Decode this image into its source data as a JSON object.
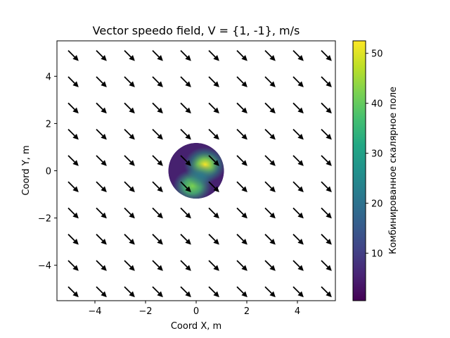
{
  "chart_data": {
    "type": "quiver",
    "title": "Vector speedo field, V = {1, -1}, m/s",
    "xlabel": "Coord X, m",
    "ylabel": "Coord Y, m",
    "xlim": [
      -5.5,
      5.5
    ],
    "ylim": [
      -5.5,
      5.5
    ],
    "xticks": [
      -4,
      -2,
      0,
      2,
      4
    ],
    "yticks": [
      -4,
      -2,
      0,
      2,
      4
    ],
    "tick_labels": {
      "x": [
        "−4",
        "−2",
        "0",
        "2",
        "4"
      ],
      "y": [
        "−4",
        "−2",
        "0",
        "2",
        "4"
      ]
    },
    "grid": false,
    "vector_field": {
      "vector": [
        1,
        -1
      ],
      "grid_x": [
        -5,
        -3.889,
        -2.778,
        -1.667,
        -0.556,
        0.556,
        1.667,
        2.778,
        3.889,
        5
      ],
      "grid_y": [
        -5,
        -3.889,
        -2.778,
        -1.667,
        -0.556,
        0.556,
        1.667,
        2.778,
        3.889,
        5
      ],
      "color": "#000000"
    },
    "scalar_disk": {
      "center": [
        0,
        0
      ],
      "radius": 1.1,
      "colormap": "viridis",
      "hotspots": [
        {
          "x": 0.35,
          "y": 0.25,
          "value": 52
        },
        {
          "x": -0.15,
          "y": -0.65,
          "value": 40
        },
        {
          "x": 0.2,
          "y": -0.2,
          "value": 28
        }
      ],
      "background_value": 3
    },
    "colorbar": {
      "label": "Комбинированное скалярное поле",
      "range": [
        0.5,
        52.5
      ],
      "ticks": [
        10,
        20,
        30,
        40,
        50
      ],
      "tick_labels": [
        "10",
        "20",
        "30",
        "40",
        "50"
      ]
    }
  }
}
